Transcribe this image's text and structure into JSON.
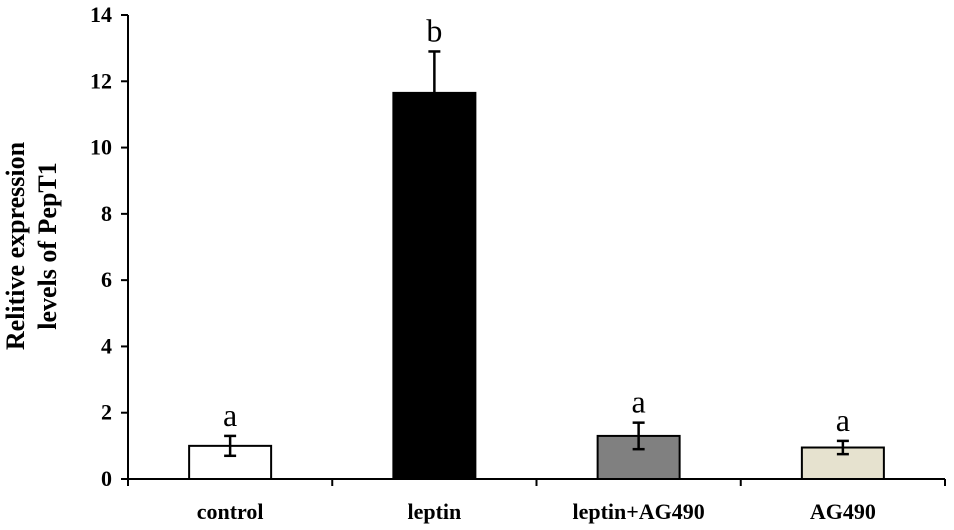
{
  "chart_data": {
    "type": "bar",
    "title": "",
    "xlabel": "",
    "ylabel_lines": [
      "Relitive expression",
      "levels of PepT1"
    ],
    "ylim": [
      0,
      14
    ],
    "yticks": [
      "0",
      "2",
      "4",
      "6",
      "8",
      "10",
      "12",
      "14"
    ],
    "grid": false,
    "legend": "none",
    "categories": [
      "control",
      "leptin",
      "leptin+AG490",
      "AG490"
    ],
    "values": [
      1.0,
      11.65,
      1.3,
      0.95
    ],
    "errors": [
      0.3,
      1.25,
      0.4,
      0.2
    ],
    "significance_letters": [
      "a",
      "b",
      "a",
      "a"
    ],
    "bar_colors": [
      "#ffffff",
      "#000000",
      "#808080",
      "#e6e2cf"
    ]
  }
}
